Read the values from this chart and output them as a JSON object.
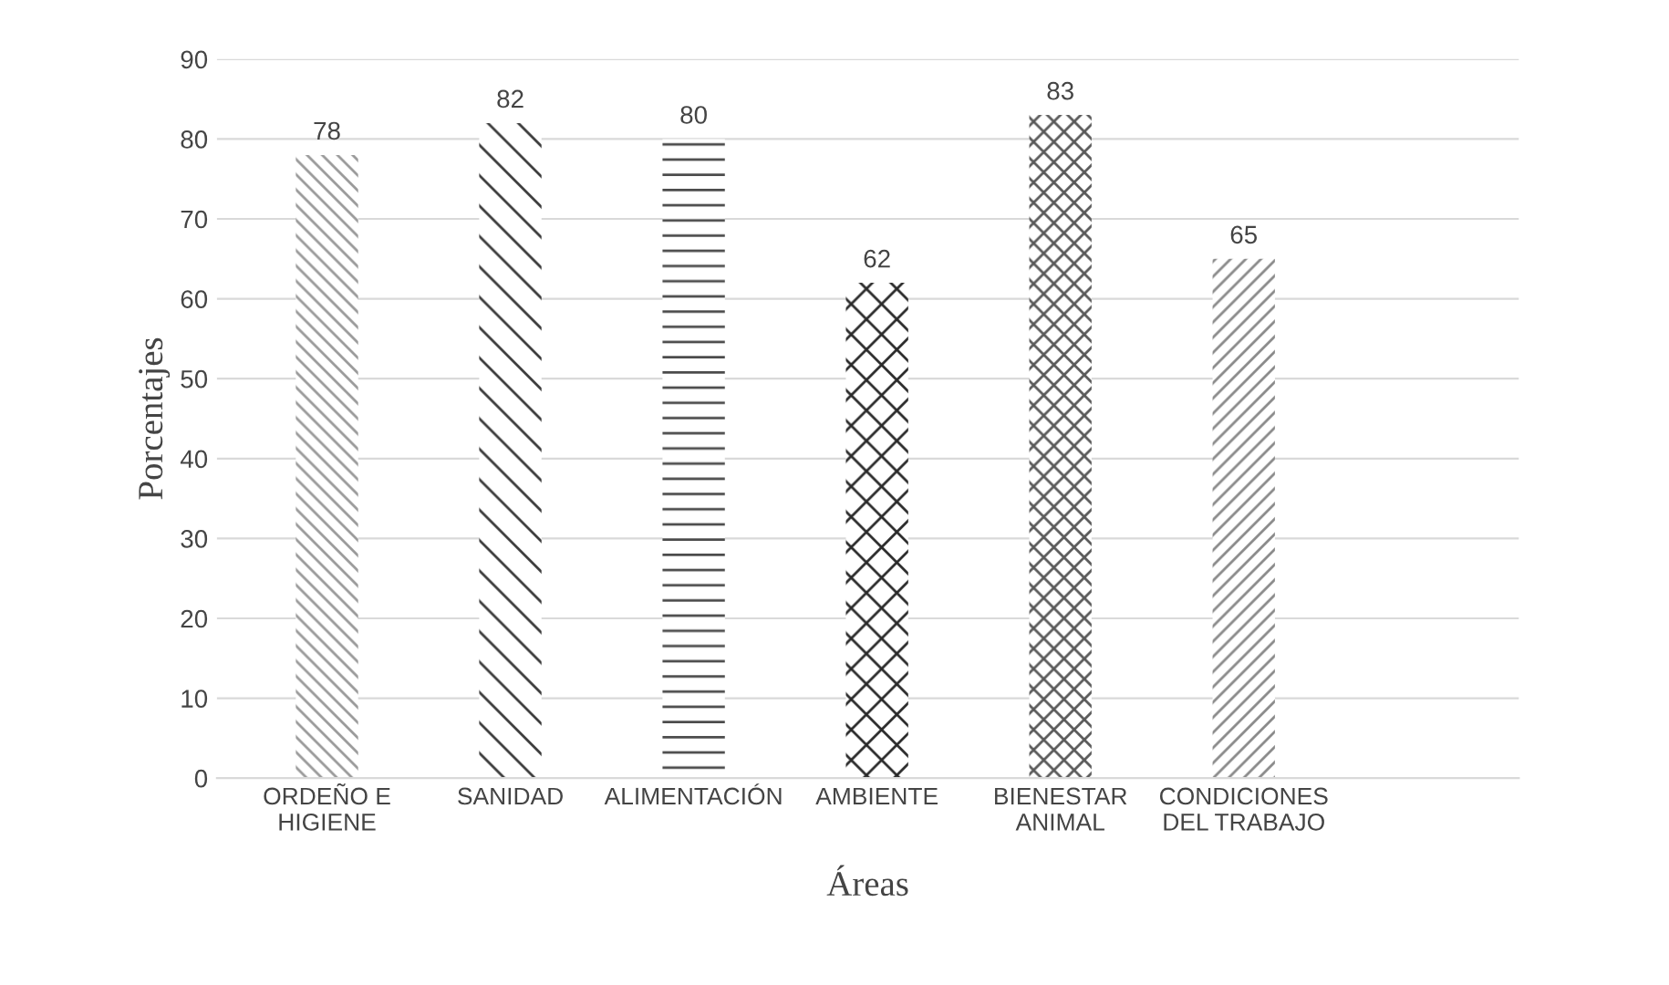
{
  "chart_data": {
    "type": "bar",
    "xlabel": "Áreas",
    "ylabel": "Porcentajes",
    "categories": [
      "ORDEÑO E\nHIGIENE",
      "SANIDAD",
      "ALIMENTACIÓN",
      "AMBIENTE",
      "BIENESTAR\nANIMAL",
      "CONDICIONES\nDEL TRABAJO"
    ],
    "values": [
      78,
      82,
      80,
      62,
      83,
      65
    ],
    "colors": [
      "#9a9a9a",
      "#3a3a3a",
      "#4a4a4a",
      "#2a2a2a",
      "#5a5a5a",
      "#8a8a8a"
    ],
    "ylim": [
      0,
      90
    ],
    "yticks": [
      0,
      10,
      20,
      30,
      40,
      50,
      60,
      70,
      80,
      90
    ],
    "grid": "y",
    "data_labels": true,
    "legend": false
  }
}
